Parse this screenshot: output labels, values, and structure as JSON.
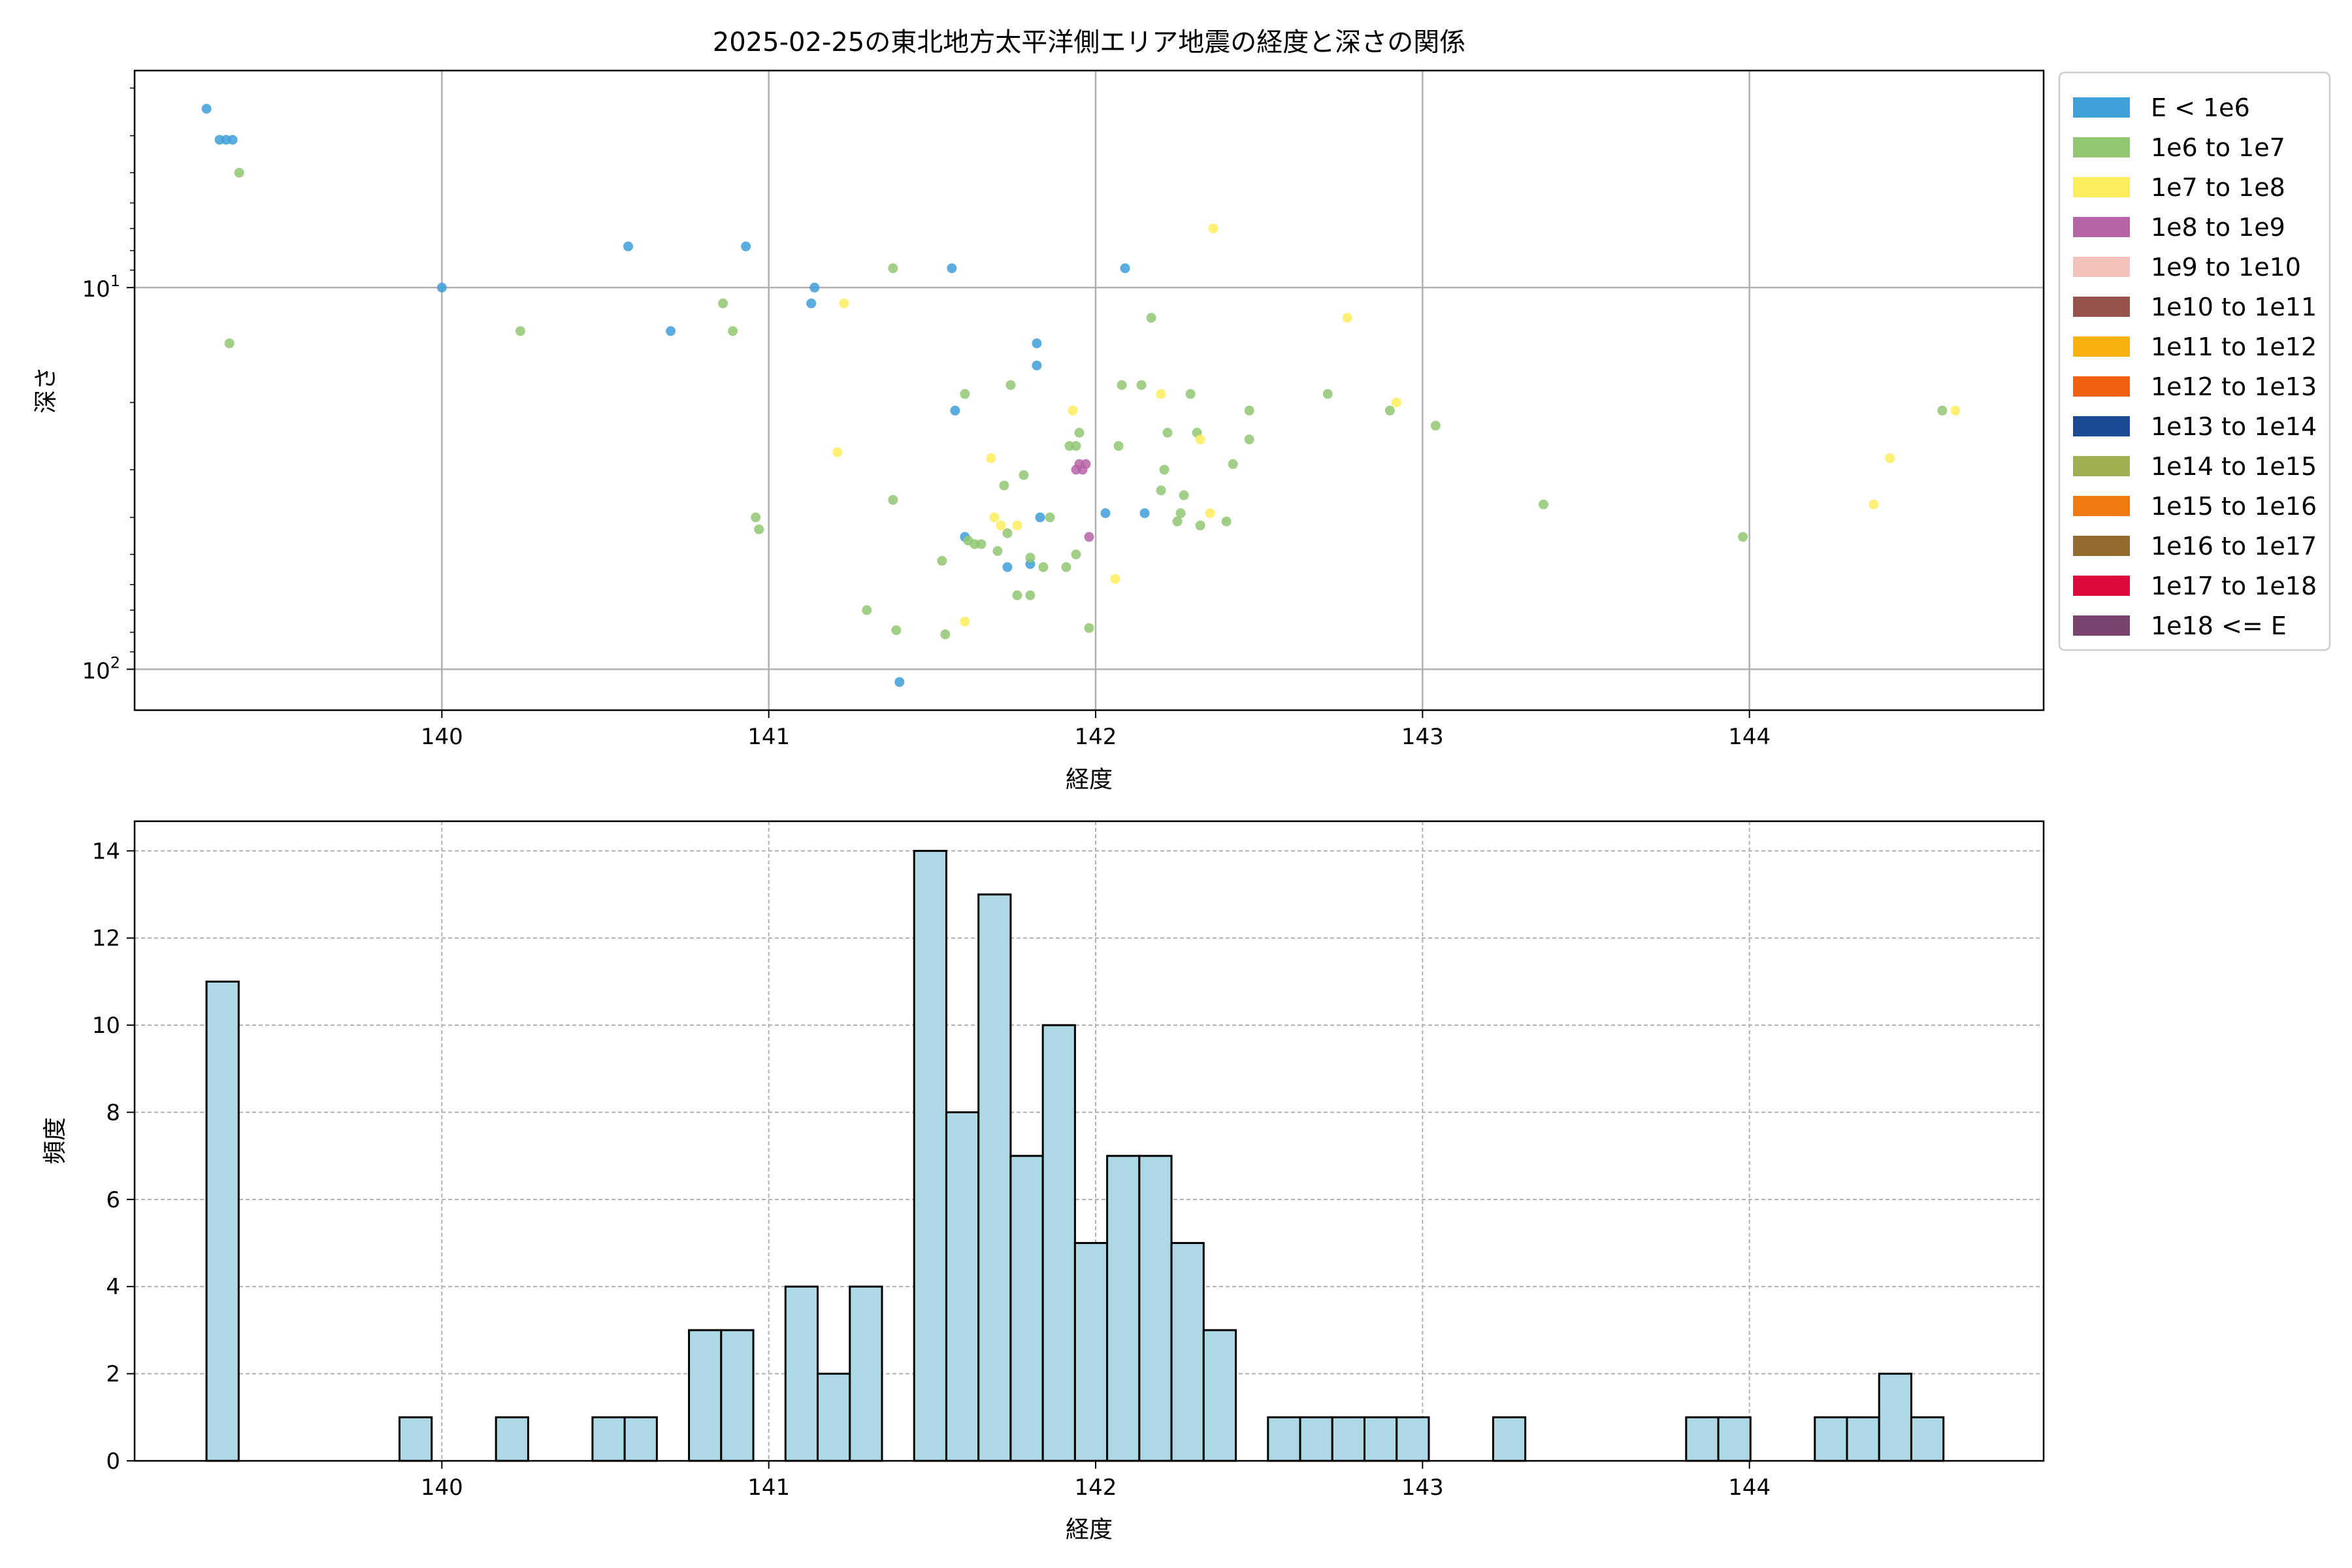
{
  "chart_data": [
    {
      "type": "scatter",
      "title": "2025-02-25の東北地方太平洋側エリア地震の経度と深さの関係",
      "xlabel": "経度",
      "ylabel": "深さ",
      "xlim": [
        139.06,
        144.9
      ],
      "xticks": [
        140,
        141,
        142,
        143,
        144
      ],
      "yscale": "log",
      "yinverted": true,
      "ylim": [
        2.7,
        128
      ],
      "yticks": [
        {
          "value": 10,
          "base": "10",
          "exp": "1"
        },
        {
          "value": 100,
          "base": "10",
          "exp": "2"
        }
      ],
      "grid": true,
      "legend_position": "outside-right",
      "legend": [
        {
          "label": "E < 1e6",
          "color": "#3f9fd9"
        },
        {
          "label": "1e6 to 1e7",
          "color": "#92c772"
        },
        {
          "label": "1e7 to 1e8",
          "color": "#fded5d"
        },
        {
          "label": "1e8 to 1e9",
          "color": "#b763a7"
        },
        {
          "label": "1e9 to 1e10",
          "color": "#f4c2bb"
        },
        {
          "label": "1e10 to 1e11",
          "color": "#96544c"
        },
        {
          "label": "1e11 to 1e12",
          "color": "#f8b20f"
        },
        {
          "label": "1e12 to 1e13",
          "color": "#ef6010"
        },
        {
          "label": "1e13 to 1e14",
          "color": "#1b4b95"
        },
        {
          "label": "1e14 to 1e15",
          "color": "#9eb050"
        },
        {
          "label": "1e15 to 1e16",
          "color": "#ef7b10"
        },
        {
          "label": "1e16 to 1e17",
          "color": "#946c30"
        },
        {
          "label": "1e17 to 1e18",
          "color": "#dc0a3c"
        },
        {
          "label": "1e18 <= E",
          "color": "#79436d"
        }
      ],
      "series": [
        {
          "class": 0,
          "points": [
            [
              139.28,
              3.4
            ],
            [
              139.32,
              4.1
            ],
            [
              139.34,
              4.1
            ],
            [
              139.36,
              4.1
            ],
            [
              140.0,
              10
            ],
            [
              140.57,
              7.8
            ],
            [
              140.7,
              13
            ],
            [
              140.93,
              7.8
            ],
            [
              141.13,
              11
            ],
            [
              141.14,
              10
            ],
            [
              141.4,
              108
            ],
            [
              141.56,
              8.9
            ],
            [
              141.57,
              21
            ],
            [
              141.6,
              45
            ],
            [
              141.73,
              54
            ],
            [
              141.8,
              53
            ],
            [
              141.82,
              16
            ],
            [
              141.82,
              14
            ],
            [
              141.83,
              40
            ],
            [
              142.03,
              39
            ],
            [
              142.09,
              8.9
            ],
            [
              142.15,
              39
            ]
          ]
        },
        {
          "class": 1,
          "points": [
            [
              139.35,
              14
            ],
            [
              139.38,
              5
            ],
            [
              140.24,
              13
            ],
            [
              140.86,
              11
            ],
            [
              140.89,
              13
            ],
            [
              140.96,
              40
            ],
            [
              140.97,
              43
            ],
            [
              141.3,
              70
            ],
            [
              141.38,
              8.9
            ],
            [
              141.38,
              36
            ],
            [
              141.39,
              79
            ],
            [
              141.53,
              52
            ],
            [
              141.54,
              81
            ],
            [
              141.6,
              19
            ],
            [
              141.61,
              46
            ],
            [
              141.63,
              47
            ],
            [
              141.65,
              47
            ],
            [
              141.7,
              49
            ],
            [
              141.72,
              33
            ],
            [
              141.73,
              44
            ],
            [
              141.74,
              18
            ],
            [
              141.76,
              64
            ],
            [
              141.78,
              31
            ],
            [
              141.8,
              64
            ],
            [
              141.8,
              51
            ],
            [
              141.84,
              54
            ],
            [
              141.86,
              40
            ],
            [
              141.91,
              54
            ],
            [
              141.92,
              26
            ],
            [
              141.94,
              50
            ],
            [
              141.94,
              26
            ],
            [
              141.95,
              24
            ],
            [
              141.98,
              78
            ],
            [
              142.07,
              26
            ],
            [
              142.08,
              18
            ],
            [
              142.14,
              18
            ],
            [
              142.17,
              12
            ],
            [
              142.2,
              34
            ],
            [
              142.21,
              30
            ],
            [
              142.22,
              24
            ],
            [
              142.25,
              41
            ],
            [
              142.26,
              39
            ],
            [
              142.27,
              35
            ],
            [
              142.29,
              19
            ],
            [
              142.31,
              24
            ],
            [
              142.32,
              42
            ],
            [
              142.4,
              41
            ],
            [
              142.42,
              29
            ],
            [
              142.47,
              21
            ],
            [
              142.47,
              25
            ],
            [
              142.71,
              19
            ],
            [
              142.9,
              21
            ],
            [
              143.04,
              23
            ],
            [
              143.37,
              37
            ],
            [
              143.98,
              45
            ],
            [
              144.59,
              21
            ]
          ]
        },
        {
          "class": 2,
          "points": [
            [
              141.23,
              11
            ],
            [
              141.21,
              27
            ],
            [
              141.6,
              75
            ],
            [
              141.68,
              28
            ],
            [
              141.69,
              40
            ],
            [
              141.71,
              42
            ],
            [
              141.76,
              42
            ],
            [
              141.93,
              21
            ],
            [
              142.06,
              58
            ],
            [
              142.2,
              19
            ],
            [
              142.32,
              25
            ],
            [
              142.35,
              39
            ],
            [
              142.36,
              7
            ],
            [
              142.77,
              12
            ],
            [
              142.92,
              20
            ],
            [
              144.38,
              37
            ],
            [
              144.43,
              28
            ],
            [
              144.63,
              21
            ]
          ]
        },
        {
          "class": 3,
          "points": [
            [
              141.94,
              30
            ],
            [
              141.95,
              29
            ],
            [
              141.96,
              30
            ],
            [
              141.97,
              29
            ],
            [
              141.98,
              45
            ]
          ]
        }
      ]
    },
    {
      "type": "histogram",
      "xlabel": "経度",
      "ylabel": "頻度",
      "xlim": [
        139.06,
        144.9
      ],
      "ylim": [
        0,
        14.68
      ],
      "xticks": [
        140,
        141,
        142,
        143,
        144
      ],
      "yticks": [
        0,
        2,
        4,
        6,
        8,
        10,
        12,
        14
      ],
      "grid": true,
      "bar_color": "#add8e6",
      "bin_start": 139.28,
      "bin_width": 0.0984,
      "counts": [
        11,
        0,
        0,
        0,
        0,
        0,
        1,
        0,
        0,
        1,
        0,
        0,
        1,
        1,
        0,
        3,
        3,
        0,
        4,
        2,
        4,
        0,
        14,
        8,
        13,
        7,
        10,
        5,
        7,
        7,
        5,
        3,
        0,
        1,
        1,
        1,
        1,
        1,
        0,
        0,
        1,
        0,
        0,
        0,
        0,
        0,
        1,
        1,
        0,
        0,
        1,
        1,
        2,
        1
      ]
    }
  ]
}
